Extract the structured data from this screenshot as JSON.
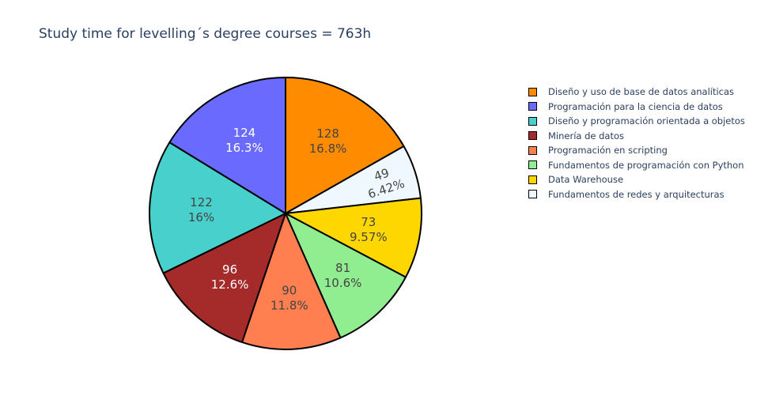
{
  "chart_data": {
    "type": "pie",
    "title": "Study time for levelling´s degree courses = 763h",
    "slices": [
      {
        "label": "Diseño y uso de base de datos analíticas",
        "value": 128,
        "percent": "16.8%",
        "color": "#FF8C00",
        "text_color": "#444444"
      },
      {
        "label": "Fundamentos de redes y arquitecturas",
        "value": 49,
        "percent": "6.42%",
        "color": "#F0F8FF",
        "text_color": "#444444"
      },
      {
        "label": "Data Warehouse",
        "value": 73,
        "percent": "9.57%",
        "color": "#FFD700",
        "text_color": "#444444"
      },
      {
        "label": "Fundamentos de programación con Python",
        "value": 81,
        "percent": "10.6%",
        "color": "#90EE90",
        "text_color": "#444444"
      },
      {
        "label": "Programación en scripting",
        "value": 90,
        "percent": "11.8%",
        "color": "#FF7F50",
        "text_color": "#444444"
      },
      {
        "label": "Minería de datos",
        "value": 96,
        "percent": "12.6%",
        "color": "#A52A2A",
        "text_color": "#ffffff"
      },
      {
        "label": "Diseño y programación orientada a objetos",
        "value": 122,
        "percent": "16%",
        "color": "#48D1CC",
        "text_color": "#444444"
      },
      {
        "label": "Programación para la ciencia de datos",
        "value": 124,
        "percent": "16.3%",
        "color": "#6A6AFF",
        "text_color": "#ffffff"
      }
    ],
    "legend": [
      {
        "label": "Diseño y uso de base de datos analíticas",
        "color": "#FF8C00"
      },
      {
        "label": "Programación para la ciencia de datos",
        "color": "#6A6AFF"
      },
      {
        "label": "Diseño y programación orientada a objetos",
        "color": "#48D1CC"
      },
      {
        "label": "Minería de datos",
        "color": "#A52A2A"
      },
      {
        "label": "Programación en scripting",
        "color": "#FF7F50"
      },
      {
        "label": "Fundamentos de programación con Python",
        "color": "#90EE90"
      },
      {
        "label": "Data Warehouse",
        "color": "#FFD700"
      },
      {
        "label": "Fundamentos de redes y arquitecturas",
        "color": "#F0F8FF"
      }
    ],
    "legend_position": "right"
  }
}
